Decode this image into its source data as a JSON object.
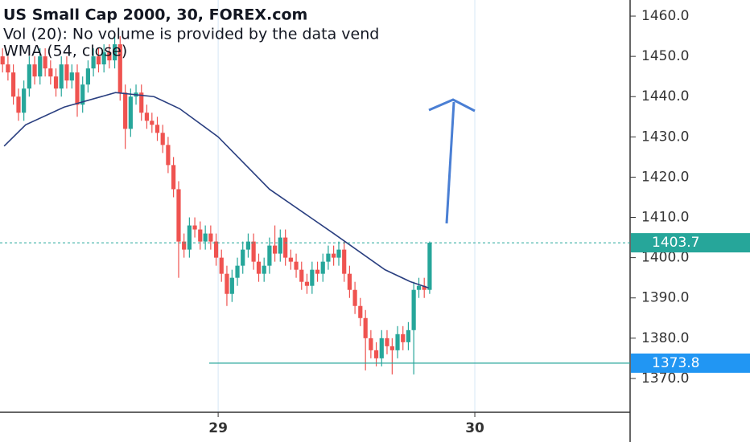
{
  "chart_data": {
    "type": "candlestick",
    "title": "US Small Cap 2000, 30, FOREX.com",
    "subtitle": "Vol (20): No volume is provided by the data vend",
    "indicator_label": "WMA (54, close)",
    "up_color": "#26a69a",
    "down_color": "#ef5350",
    "x": [
      28.16,
      28.181,
      28.202,
      28.222,
      28.243,
      28.264,
      28.285,
      28.306,
      28.326,
      28.347,
      28.368,
      28.389,
      28.41,
      28.43,
      28.451,
      28.472,
      28.493,
      28.514,
      28.534,
      28.555,
      28.576,
      28.597,
      28.618,
      28.638,
      28.659,
      28.68,
      28.701,
      28.722,
      28.742,
      28.763,
      28.784,
      28.805,
      28.826,
      28.846,
      28.867,
      28.888,
      28.909,
      28.93,
      28.95,
      28.971,
      28.992,
      29.013,
      29.034,
      29.054,
      29.075,
      29.096,
      29.117,
      29.138,
      29.158,
      29.179,
      29.2,
      29.221,
      29.242,
      29.262,
      29.283,
      29.304,
      29.325,
      29.346,
      29.366,
      29.387,
      29.408,
      29.429,
      29.45,
      29.47,
      29.491,
      29.512,
      29.533,
      29.554,
      29.574,
      29.595,
      29.616,
      29.637,
      29.658,
      29.678,
      29.699,
      29.72,
      29.741,
      29.762,
      29.782,
      29.803,
      29.824
    ],
    "open": [
      1450,
      1448,
      1446,
      1440,
      1436,
      1442,
      1448,
      1445,
      1450,
      1447,
      1445,
      1442,
      1448,
      1444,
      1446,
      1438,
      1443,
      1447,
      1450,
      1448,
      1451,
      1449,
      1453,
      1441,
      1432,
      1440,
      1441,
      1436,
      1434,
      1433,
      1431,
      1428,
      1423,
      1417,
      1404,
      1402,
      1408,
      1407,
      1404,
      1406,
      1404,
      1400,
      1396,
      1391,
      1395,
      1398,
      1402,
      1404,
      1399,
      1396,
      1398,
      1403,
      1401,
      1405,
      1400,
      1399,
      1397,
      1394,
      1393,
      1397,
      1396,
      1399,
      1401,
      1400,
      1402,
      1396,
      1392,
      1388,
      1385,
      1380,
      1377,
      1375,
      1380,
      1378,
      1377,
      1381,
      1379,
      1382,
      1392,
      1393,
      1392
    ],
    "high": [
      1452,
      1450,
      1448,
      1442,
      1444,
      1450,
      1450,
      1452,
      1452,
      1449,
      1447,
      1450,
      1450,
      1448,
      1448,
      1445,
      1449,
      1452,
      1452,
      1453,
      1453,
      1455,
      1455,
      1443,
      1442,
      1443,
      1443,
      1438,
      1436,
      1435,
      1433,
      1430,
      1425,
      1419,
      1406,
      1410,
      1410,
      1409,
      1408,
      1408,
      1406,
      1402,
      1398,
      1397,
      1400,
      1404,
      1406,
      1406,
      1401,
      1400,
      1405,
      1408,
      1407,
      1407,
      1402,
      1401,
      1399,
      1396,
      1399,
      1399,
      1401,
      1403,
      1403,
      1404,
      1404,
      1398,
      1394,
      1390,
      1387,
      1382,
      1379,
      1382,
      1382,
      1380,
      1383,
      1383,
      1384,
      1394,
      1395,
      1395,
      1404
    ],
    "low": [
      1446,
      1444,
      1438,
      1434,
      1434,
      1440,
      1443,
      1443,
      1445,
      1443,
      1440,
      1440,
      1442,
      1442,
      1435,
      1436,
      1441,
      1445,
      1446,
      1446,
      1447,
      1447,
      1439,
      1427,
      1430,
      1438,
      1434,
      1432,
      1431,
      1429,
      1426,
      1421,
      1415,
      1395,
      1400,
      1400,
      1405,
      1402,
      1402,
      1402,
      1398,
      1394,
      1388,
      1389,
      1393,
      1396,
      1400,
      1397,
      1394,
      1394,
      1396,
      1399,
      1399,
      1398,
      1397,
      1395,
      1392,
      1391,
      1391,
      1394,
      1394,
      1397,
      1398,
      1398,
      1394,
      1390,
      1386,
      1383,
      1372,
      1375,
      1373,
      1373,
      1376,
      1371,
      1375,
      1377,
      1377,
      1371,
      1390,
      1390,
      1391
    ],
    "close": [
      1448,
      1446,
      1440,
      1436,
      1442,
      1448,
      1445,
      1450,
      1447,
      1445,
      1442,
      1448,
      1444,
      1446,
      1438,
      1443,
      1447,
      1450,
      1448,
      1451,
      1449,
      1453,
      1441,
      1432,
      1440,
      1441,
      1436,
      1434,
      1433,
      1431,
      1428,
      1423,
      1417,
      1404,
      1402,
      1408,
      1407,
      1404,
      1406,
      1404,
      1400,
      1396,
      1391,
      1395,
      1398,
      1402,
      1404,
      1399,
      1396,
      1398,
      1403,
      1401,
      1405,
      1400,
      1399,
      1397,
      1394,
      1393,
      1397,
      1396,
      1399,
      1401,
      1400,
      1402,
      1396,
      1392,
      1388,
      1385,
      1380,
      1377,
      1375,
      1380,
      1378,
      1377,
      1381,
      1379,
      1382,
      1392,
      1393,
      1392,
      1403.7
    ],
    "wma": {
      "color": "#2a3f80",
      "x": [
        28.166,
        28.25,
        28.4,
        28.6,
        28.75,
        28.85,
        29.0,
        29.2,
        29.45,
        29.65,
        29.75,
        29.82
      ],
      "values": [
        1427.7,
        1433,
        1437.4,
        1441,
        1440,
        1437,
        1430,
        1417,
        1406,
        1397,
        1394,
        1392.5
      ]
    },
    "last_price": {
      "value": 1403.7,
      "color": "#26a69a"
    },
    "level": {
      "value": 1373.8,
      "color": "#2196f3",
      "line_color": "#26a69a",
      "x_start": 28.965
    },
    "xlim": [
      28.15,
      30.605
    ],
    "xticks": [
      29,
      30
    ],
    "ylim": [
      1361.6,
      1464
    ],
    "yticks": [
      {
        "value": 1370,
        "label": "1370.0"
      },
      {
        "value": 1380,
        "label": "1380.0"
      },
      {
        "value": 1390,
        "label": "1390.0"
      },
      {
        "value": 1400,
        "label": "1400.0"
      },
      {
        "value": 1410,
        "label": "1410.0"
      },
      {
        "value": 1420,
        "label": "1420.0"
      },
      {
        "value": 1430,
        "label": "1430.0"
      },
      {
        "value": 1440,
        "label": "1440.0"
      },
      {
        "value": 1450,
        "label": "1450.0"
      },
      {
        "value": 1460,
        "label": "1460.0"
      }
    ],
    "grid": true
  }
}
